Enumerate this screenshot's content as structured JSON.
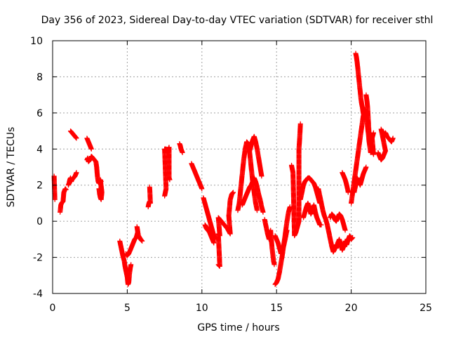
{
  "chart_data": {
    "type": "scatter",
    "title": "Day 356 of 2023, Sidereal Day-to-day VTEC variation (SDTVAR) for receiver sthl",
    "xlabel": "GPS time / hours",
    "ylabel": "SDTVAR / TECUs",
    "xlim": [
      0,
      25
    ],
    "ylim": [
      -4,
      10
    ],
    "xticks": [
      "0",
      "5",
      "10",
      "15",
      "20",
      "25"
    ],
    "yticks": [
      "-4",
      "-2",
      "0",
      "2",
      "4",
      "6",
      "8",
      "10"
    ],
    "grid": true,
    "marker": "plus",
    "color": "#ff0000",
    "segments": [
      [
        [
          0.1,
          2.5
        ],
        [
          0.15,
          1.2
        ]
      ],
      [
        [
          0.5,
          0.5
        ],
        [
          0.55,
          0.9
        ],
        [
          0.6,
          1.0
        ],
        [
          0.7,
          1.1
        ],
        [
          0.75,
          1.6
        ],
        [
          0.8,
          1.7
        ],
        [
          0.85,
          1.8
        ],
        [
          0.9,
          1.75
        ]
      ],
      [
        [
          1.05,
          2.0
        ],
        [
          1.1,
          2.1
        ],
        [
          1.15,
          2.3
        ],
        [
          1.2,
          2.4
        ],
        [
          1.25,
          2.2
        ],
        [
          1.3,
          2.3
        ],
        [
          1.4,
          2.4
        ],
        [
          1.5,
          2.5
        ],
        [
          1.55,
          2.6
        ],
        [
          1.6,
          2.7
        ]
      ],
      [
        [
          1.2,
          5.0
        ],
        [
          1.25,
          4.95
        ],
        [
          1.3,
          4.9
        ],
        [
          1.35,
          4.85
        ],
        [
          1.4,
          4.8
        ],
        [
          1.45,
          4.75
        ],
        [
          1.5,
          4.7
        ],
        [
          1.55,
          4.65
        ],
        [
          1.6,
          4.6
        ]
      ],
      [
        [
          2.3,
          3.4
        ],
        [
          2.35,
          3.5
        ],
        [
          2.4,
          3.3
        ],
        [
          2.5,
          3.4
        ],
        [
          2.6,
          3.6
        ],
        [
          2.7,
          3.5
        ],
        [
          2.8,
          3.4
        ],
        [
          2.9,
          3.3
        ],
        [
          2.95,
          3.0
        ],
        [
          3.0,
          2.5
        ],
        [
          3.05,
          2.2
        ],
        [
          3.1,
          2.1
        ]
      ],
      [
        [
          2.3,
          4.6
        ],
        [
          2.35,
          4.5
        ],
        [
          2.4,
          4.4
        ],
        [
          2.45,
          4.3
        ],
        [
          2.5,
          4.2
        ],
        [
          2.55,
          4.1
        ],
        [
          2.6,
          4.0
        ]
      ],
      [
        [
          3.1,
          1.8
        ],
        [
          3.15,
          1.5
        ],
        [
          3.2,
          1.3
        ],
        [
          3.25,
          1.2
        ],
        [
          3.3,
          1.6
        ],
        [
          3.2,
          2.3
        ],
        [
          3.25,
          2.2
        ]
      ],
      [
        [
          4.5,
          -1.1
        ],
        [
          4.55,
          -1.3
        ],
        [
          4.6,
          -1.5
        ],
        [
          4.65,
          -1.7
        ],
        [
          4.7,
          -1.9
        ],
        [
          4.8,
          -2.2
        ],
        [
          4.85,
          -2.5
        ],
        [
          4.9,
          -2.7
        ],
        [
          4.95,
          -2.9
        ],
        [
          5.0,
          -3.1
        ],
        [
          5.05,
          -3.5
        ],
        [
          5.1,
          -3.4
        ],
        [
          5.15,
          -2.9
        ],
        [
          5.2,
          -2.6
        ],
        [
          5.25,
          -2.4
        ]
      ],
      [
        [
          4.9,
          -1.8
        ],
        [
          5.0,
          -1.9
        ],
        [
          5.1,
          -1.8
        ],
        [
          5.2,
          -1.6
        ],
        [
          5.3,
          -1.4
        ],
        [
          5.4,
          -1.2
        ],
        [
          5.5,
          -1.0
        ],
        [
          5.6,
          -0.9
        ],
        [
          5.7,
          -0.6
        ],
        [
          5.65,
          -0.3
        ],
        [
          5.75,
          -0.8
        ],
        [
          5.9,
          -1.0
        ],
        [
          6.0,
          -1.1
        ]
      ],
      [
        [
          6.4,
          0.8
        ],
        [
          6.45,
          1.0
        ],
        [
          6.5,
          1.1
        ],
        [
          6.55,
          1.0
        ],
        [
          6.5,
          1.9
        ]
      ],
      [
        [
          7.5,
          1.4
        ],
        [
          7.55,
          1.6
        ],
        [
          7.6,
          1.8
        ],
        [
          7.5,
          4.0
        ],
        [
          7.6,
          4.0
        ],
        [
          7.7,
          3.8
        ],
        [
          7.8,
          4.1
        ],
        [
          7.8,
          2.4
        ],
        [
          7.85,
          2.3
        ]
      ],
      [
        [
          8.5,
          4.3
        ],
        [
          8.55,
          4.2
        ],
        [
          8.6,
          4.0
        ],
        [
          8.65,
          3.9
        ],
        [
          8.7,
          3.8
        ]
      ],
      [
        [
          9.3,
          3.2
        ],
        [
          9.4,
          3.0
        ],
        [
          9.5,
          2.8
        ],
        [
          9.6,
          2.6
        ],
        [
          9.7,
          2.4
        ],
        [
          9.8,
          2.2
        ],
        [
          9.9,
          2.0
        ],
        [
          10.0,
          1.8
        ]
      ],
      [
        [
          10.1,
          1.3
        ],
        [
          10.2,
          1.0
        ],
        [
          10.3,
          0.7
        ],
        [
          10.4,
          0.4
        ],
        [
          10.5,
          0.1
        ],
        [
          10.6,
          -0.2
        ],
        [
          10.7,
          -0.5
        ],
        [
          10.8,
          -0.8
        ],
        [
          10.9,
          -1.0
        ],
        [
          10.2,
          -0.2
        ],
        [
          10.3,
          -0.4
        ],
        [
          10.5,
          -0.6
        ],
        [
          10.7,
          -1.0
        ],
        [
          10.8,
          -1.2
        ]
      ],
      [
        [
          11.1,
          -2.4
        ],
        [
          11.2,
          -2.5
        ],
        [
          11.1,
          -0.7
        ],
        [
          11.2,
          -0.8
        ],
        [
          11.1,
          0.2
        ],
        [
          11.3,
          0.0
        ],
        [
          11.5,
          -0.2
        ],
        [
          11.7,
          -0.4
        ],
        [
          11.9,
          -0.7
        ],
        [
          11.8,
          0.3
        ],
        [
          11.9,
          1.2
        ],
        [
          12.0,
          1.5
        ],
        [
          12.1,
          1.6
        ]
      ],
      [
        [
          12.4,
          0.6
        ],
        [
          12.5,
          1.0
        ],
        [
          12.6,
          1.8
        ],
        [
          12.7,
          2.6
        ],
        [
          12.8,
          3.4
        ],
        [
          12.9,
          4.0
        ],
        [
          13.0,
          4.4
        ],
        [
          13.1,
          4.3
        ],
        [
          13.2,
          3.8
        ],
        [
          13.3,
          3.0
        ],
        [
          13.4,
          2.2
        ],
        [
          13.5,
          1.6
        ],
        [
          13.6,
          1.0
        ],
        [
          13.7,
          0.6
        ]
      ],
      [
        [
          12.7,
          0.9
        ],
        [
          12.8,
          1.1
        ],
        [
          12.9,
          1.3
        ],
        [
          13.0,
          1.5
        ],
        [
          13.1,
          1.7
        ],
        [
          13.2,
          1.9
        ],
        [
          13.3,
          2.0
        ],
        [
          13.4,
          2.2
        ],
        [
          13.5,
          2.4
        ],
        [
          13.6,
          2.2
        ],
        [
          13.7,
          1.9
        ],
        [
          13.8,
          1.5
        ],
        [
          13.9,
          1.2
        ],
        [
          14.0,
          0.8
        ],
        [
          14.1,
          0.5
        ]
      ],
      [
        [
          13.2,
          3.9
        ],
        [
          13.3,
          4.2
        ],
        [
          13.4,
          4.5
        ],
        [
          13.5,
          4.7
        ],
        [
          13.6,
          4.4
        ],
        [
          13.7,
          4.0
        ],
        [
          13.8,
          3.5
        ],
        [
          13.9,
          3.0
        ],
        [
          14.0,
          2.5
        ]
      ],
      [
        [
          14.2,
          0.1
        ],
        [
          14.3,
          -0.3
        ],
        [
          14.4,
          -0.7
        ],
        [
          14.5,
          -1.0
        ],
        [
          14.6,
          -0.5
        ],
        [
          14.7,
          -1.5
        ],
        [
          14.8,
          -2.2
        ],
        [
          14.85,
          -2.4
        ]
      ],
      [
        [
          14.9,
          -3.5
        ],
        [
          15.0,
          -3.4
        ],
        [
          15.1,
          -3.2
        ],
        [
          15.2,
          -2.8
        ],
        [
          15.3,
          -2.3
        ],
        [
          15.4,
          -1.8
        ],
        [
          15.5,
          -1.2
        ],
        [
          15.6,
          -0.6
        ],
        [
          15.7,
          0.0
        ],
        [
          15.8,
          0.5
        ],
        [
          15.9,
          0.8
        ]
      ],
      [
        [
          14.9,
          -0.8
        ],
        [
          15.0,
          -1.0
        ],
        [
          15.1,
          -1.2
        ],
        [
          15.2,
          -1.5
        ],
        [
          15.3,
          -1.8
        ],
        [
          15.4,
          -1.6
        ],
        [
          15.5,
          -1.3
        ],
        [
          15.6,
          -0.9
        ],
        [
          15.7,
          -0.5
        ]
      ],
      [
        [
          16.0,
          3.1
        ],
        [
          16.05,
          2.9
        ],
        [
          16.1,
          2.7
        ],
        [
          16.2,
          -0.8
        ],
        [
          16.3,
          -0.6
        ],
        [
          16.4,
          -0.3
        ],
        [
          16.5,
          0.0
        ],
        [
          16.5,
          4.0
        ],
        [
          16.55,
          4.6
        ],
        [
          16.6,
          5.4
        ]
      ],
      [
        [
          16.6,
          1.2
        ],
        [
          16.7,
          1.6
        ],
        [
          16.8,
          2.0
        ],
        [
          16.9,
          2.2
        ],
        [
          17.0,
          2.3
        ],
        [
          17.1,
          2.4
        ],
        [
          17.2,
          2.4
        ],
        [
          17.3,
          2.3
        ],
        [
          17.4,
          2.2
        ],
        [
          17.5,
          2.1
        ],
        [
          17.6,
          1.9
        ],
        [
          17.7,
          1.6
        ],
        [
          17.8,
          1.3
        ],
        [
          17.9,
          1.0
        ]
      ],
      [
        [
          16.8,
          0.2
        ],
        [
          16.9,
          0.5
        ],
        [
          17.0,
          0.8
        ],
        [
          17.1,
          1.0
        ],
        [
          17.2,
          0.7
        ],
        [
          17.3,
          0.4
        ],
        [
          17.4,
          0.6
        ],
        [
          17.5,
          0.9
        ],
        [
          17.6,
          0.5
        ],
        [
          17.7,
          0.2
        ],
        [
          17.8,
          0.0
        ],
        [
          17.9,
          -0.2
        ],
        [
          18.0,
          -0.2
        ]
      ],
      [
        [
          17.8,
          1.8
        ],
        [
          17.9,
          1.4
        ],
        [
          18.0,
          1.0
        ],
        [
          18.1,
          0.6
        ],
        [
          18.2,
          0.3
        ],
        [
          18.3,
          0.1
        ],
        [
          18.4,
          -0.2
        ],
        [
          18.5,
          -0.6
        ],
        [
          18.6,
          -1.0
        ],
        [
          18.7,
          -1.4
        ],
        [
          18.8,
          -1.7
        ],
        [
          18.9,
          -1.5
        ],
        [
          19.0,
          -1.3
        ]
      ],
      [
        [
          18.6,
          0.2
        ],
        [
          18.7,
          0.4
        ],
        [
          18.8,
          0.3
        ],
        [
          18.9,
          0.1
        ],
        [
          19.0,
          0.0
        ],
        [
          19.1,
          0.2
        ],
        [
          19.2,
          0.4
        ],
        [
          19.3,
          0.3
        ],
        [
          19.4,
          0.1
        ],
        [
          19.5,
          -0.2
        ],
        [
          19.6,
          -0.5
        ]
      ],
      [
        [
          19.0,
          -1.5
        ],
        [
          19.1,
          -1.2
        ],
        [
          19.2,
          -1.0
        ],
        [
          19.3,
          -1.3
        ],
        [
          19.4,
          -1.6
        ],
        [
          19.5,
          -1.4
        ],
        [
          19.6,
          -1.1
        ],
        [
          19.7,
          -1.3
        ],
        [
          19.8,
          -1.0
        ],
        [
          19.9,
          -0.8
        ],
        [
          20.0,
          -1.0
        ],
        [
          20.1,
          -0.9
        ]
      ],
      [
        [
          19.4,
          2.7
        ],
        [
          19.5,
          2.5
        ],
        [
          19.6,
          2.3
        ],
        [
          19.7,
          2.0
        ],
        [
          19.8,
          1.6
        ]
      ],
      [
        [
          20.0,
          1.0
        ],
        [
          20.1,
          1.6
        ],
        [
          20.2,
          2.2
        ],
        [
          20.3,
          2.8
        ],
        [
          20.4,
          3.4
        ],
        [
          20.5,
          4.0
        ],
        [
          20.6,
          4.6
        ],
        [
          20.7,
          5.2
        ],
        [
          20.8,
          5.8
        ],
        [
          20.9,
          6.2
        ],
        [
          21.0,
          6.0
        ],
        [
          21.1,
          5.2
        ],
        [
          21.2,
          4.4
        ],
        [
          21.3,
          3.8
        ]
      ],
      [
        [
          20.3,
          9.3
        ],
        [
          20.35,
          9.1
        ],
        [
          20.4,
          8.8
        ],
        [
          20.45,
          8.4
        ],
        [
          20.5,
          8.0
        ],
        [
          20.55,
          7.6
        ],
        [
          20.6,
          7.2
        ],
        [
          20.65,
          6.8
        ],
        [
          20.7,
          6.5
        ],
        [
          20.75,
          6.3
        ],
        [
          20.8,
          6.0
        ],
        [
          20.85,
          5.9
        ]
      ],
      [
        [
          21.0,
          7.0
        ],
        [
          21.05,
          6.7
        ],
        [
          21.1,
          6.3
        ],
        [
          21.2,
          4.8
        ],
        [
          21.3,
          4.4
        ],
        [
          21.4,
          4.0
        ],
        [
          21.5,
          3.7
        ],
        [
          21.4,
          4.6
        ],
        [
          21.5,
          4.9
        ]
      ],
      [
        [
          20.2,
          1.6
        ],
        [
          20.3,
          2.0
        ],
        [
          20.4,
          2.4
        ],
        [
          20.5,
          2.2
        ],
        [
          20.6,
          2.0
        ],
        [
          20.7,
          2.3
        ],
        [
          20.8,
          2.6
        ],
        [
          20.9,
          2.8
        ],
        [
          21.0,
          3.0
        ]
      ],
      [
        [
          21.8,
          3.8
        ],
        [
          21.9,
          3.6
        ],
        [
          22.0,
          3.4
        ],
        [
          22.1,
          3.5
        ],
        [
          22.2,
          3.7
        ],
        [
          22.3,
          3.9
        ],
        [
          22.0,
          5.1
        ],
        [
          22.1,
          4.9
        ],
        [
          22.2,
          4.8
        ],
        [
          22.3,
          4.9
        ],
        [
          22.4,
          4.7
        ],
        [
          22.5,
          4.6
        ],
        [
          22.6,
          4.5
        ],
        [
          22.7,
          4.4
        ],
        [
          22.8,
          4.6
        ]
      ]
    ]
  }
}
